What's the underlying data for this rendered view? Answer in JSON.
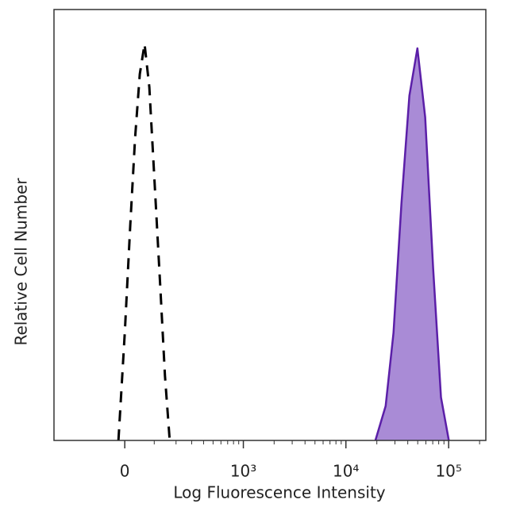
{
  "chart_data": {
    "type": "histogram-overlay",
    "x_label": "Log Fluorescence Intensity",
    "y_label": "Relative Cell Number",
    "xscale": "asinh",
    "linear_width": 141,
    "xlim": [
      -330,
      230000
    ],
    "ylim": [
      0,
      100
    ],
    "xticks": [
      0,
      {
        "value": 1000,
        "label": "10³"
      },
      {
        "value": 10000,
        "label": "10⁴"
      },
      {
        "value": 100000,
        "label": "10⁵"
      }
    ],
    "xminorticks": [
      100,
      200,
      300,
      400,
      500,
      600,
      700,
      800,
      900,
      2000,
      3000,
      4000,
      5000,
      6000,
      7000,
      8000,
      9000,
      20000,
      30000,
      40000,
      50000,
      60000,
      70000,
      80000,
      90000,
      200000
    ],
    "series": [
      {
        "color": "#000000",
        "dashed": true,
        "filled": false,
        "x": [
          -20,
          0,
          17.5,
          32.7,
          48.3,
          64.6,
          81.5,
          99.5,
          124.9,
          145,
          167.3
        ],
        "values": [
          0,
          25,
          50,
          70,
          85,
          92,
          82,
          62,
          35,
          15,
          0
        ]
      },
      {
        "color": "#5b1fa8",
        "fill": "#a98bd6",
        "dashed": false,
        "filled": true,
        "x": [
          19360,
          24360,
          29070,
          34720,
          41450,
          49600,
          59110,
          70540,
          84180,
          100470
        ],
        "values": [
          0,
          8,
          25,
          55,
          80,
          91,
          75,
          40,
          10,
          0
        ]
      }
    ]
  }
}
